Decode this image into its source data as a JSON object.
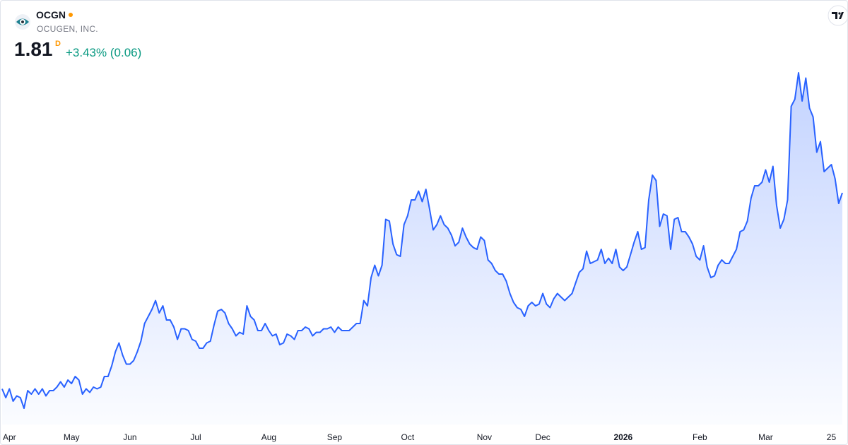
{
  "header": {
    "symbol": "OCGN",
    "company": "OCUGEN, INC.",
    "price": "1.81",
    "interval": "D",
    "change": "+3.43% (0.06)"
  },
  "chart_data": {
    "type": "line",
    "color": "#2962ff",
    "categories": [
      null,
      null,
      "Apr",
      null,
      null,
      null,
      null,
      null,
      null,
      null,
      null,
      null,
      null,
      null,
      null,
      null,
      null,
      null,
      null,
      "May",
      null,
      null,
      null,
      null,
      null,
      null,
      null,
      null,
      null,
      null,
      null,
      null,
      null,
      null,
      null,
      "Jun",
      null,
      null,
      null,
      null,
      null,
      null,
      null,
      null,
      null,
      null,
      null,
      null,
      null,
      null,
      null,
      null,
      null,
      "Jul",
      null,
      null,
      null,
      null,
      null,
      null,
      null,
      null,
      null,
      null,
      null,
      null,
      null,
      null,
      null,
      null,
      null,
      null,
      null,
      "Aug",
      null,
      null,
      null,
      null,
      null,
      null,
      null,
      null,
      null,
      null,
      null,
      null,
      null,
      null,
      null,
      null,
      null,
      "Sep",
      null,
      null,
      null,
      null,
      null,
      null,
      null,
      null,
      null,
      null,
      null,
      null,
      null,
      null,
      null,
      null,
      null,
      null,
      null,
      "Oct",
      null,
      null,
      null,
      null,
      null,
      null,
      null,
      null,
      null,
      null,
      null,
      null,
      null,
      null,
      null,
      null,
      null,
      null,
      null,
      null,
      "Nov",
      null,
      null,
      null,
      null,
      null,
      null,
      null,
      null,
      null,
      null,
      null,
      null,
      null,
      null,
      null,
      "Dec",
      null,
      null,
      null,
      null,
      null,
      null,
      null,
      null,
      null,
      null,
      null,
      null,
      null,
      null,
      null,
      null,
      null,
      null,
      null,
      null,
      null,
      "2026",
      null,
      null,
      null,
      null,
      null,
      null,
      null,
      null,
      null,
      null,
      null,
      null,
      null,
      null,
      null,
      null,
      null,
      null,
      null,
      null,
      "Feb",
      null,
      null,
      null,
      null,
      null,
      null,
      null,
      null,
      null,
      null,
      null,
      null,
      null,
      null,
      null,
      null,
      null,
      "Mar",
      null,
      null,
      null,
      null,
      null,
      null,
      null,
      null,
      null,
      null,
      null,
      null,
      null,
      null,
      null,
      null,
      null,
      "25",
      null,
      null,
      null
    ],
    "values": [
      0.7,
      0.65,
      0.7,
      0.63,
      0.66,
      0.65,
      0.59,
      0.69,
      0.67,
      0.7,
      0.67,
      0.7,
      0.66,
      0.69,
      0.69,
      0.71,
      0.74,
      0.71,
      0.75,
      0.73,
      0.77,
      0.75,
      0.67,
      0.7,
      0.68,
      0.71,
      0.7,
      0.71,
      0.77,
      0.77,
      0.83,
      0.91,
      0.96,
      0.89,
      0.84,
      0.84,
      0.86,
      0.91,
      0.97,
      1.07,
      1.11,
      1.15,
      1.2,
      1.13,
      1.17,
      1.09,
      1.09,
      1.05,
      0.98,
      1.04,
      1.04,
      1.03,
      0.98,
      0.97,
      0.93,
      0.93,
      0.96,
      0.97,
      1.06,
      1.14,
      1.15,
      1.13,
      1.07,
      1.04,
      1.0,
      1.02,
      1.01,
      1.17,
      1.11,
      1.09,
      1.03,
      1.03,
      1.07,
      1.03,
      1.0,
      1.01,
      0.95,
      0.96,
      1.01,
      1.0,
      0.98,
      1.03,
      1.03,
      1.05,
      1.04,
      1.0,
      1.02,
      1.02,
      1.04,
      1.04,
      1.05,
      1.02,
      1.05,
      1.03,
      1.03,
      1.03,
      1.05,
      1.07,
      1.07,
      1.2,
      1.17,
      1.33,
      1.4,
      1.34,
      1.4,
      1.66,
      1.65,
      1.52,
      1.46,
      1.45,
      1.63,
      1.68,
      1.77,
      1.77,
      1.82,
      1.76,
      1.83,
      1.72,
      1.6,
      1.63,
      1.68,
      1.63,
      1.61,
      1.57,
      1.51,
      1.53,
      1.61,
      1.56,
      1.52,
      1.5,
      1.49,
      1.56,
      1.54,
      1.43,
      1.41,
      1.37,
      1.35,
      1.35,
      1.31,
      1.24,
      1.19,
      1.16,
      1.15,
      1.11,
      1.17,
      1.19,
      1.17,
      1.18,
      1.24,
      1.18,
      1.16,
      1.21,
      1.24,
      1.22,
      1.2,
      1.22,
      1.24,
      1.3,
      1.36,
      1.38,
      1.48,
      1.41,
      1.42,
      1.43,
      1.49,
      1.41,
      1.44,
      1.41,
      1.49,
      1.39,
      1.37,
      1.39,
      1.46,
      1.53,
      1.59,
      1.49,
      1.5,
      1.77,
      1.91,
      1.88,
      1.62,
      1.69,
      1.68,
      1.49,
      1.66,
      1.67,
      1.59,
      1.59,
      1.56,
      1.52,
      1.45,
      1.43,
      1.51,
      1.39,
      1.33,
      1.34,
      1.4,
      1.43,
      1.41,
      1.41,
      1.45,
      1.49,
      1.59,
      1.6,
      1.65,
      1.78,
      1.85,
      1.85,
      1.87,
      1.94,
      1.87,
      1.96,
      1.74,
      1.61,
      1.66,
      1.77,
      2.3,
      2.34,
      2.49,
      2.33,
      2.46,
      2.29,
      2.24,
      2.04,
      2.1,
      1.93,
      1.95,
      1.97,
      1.89,
      1.75,
      1.81
    ]
  }
}
